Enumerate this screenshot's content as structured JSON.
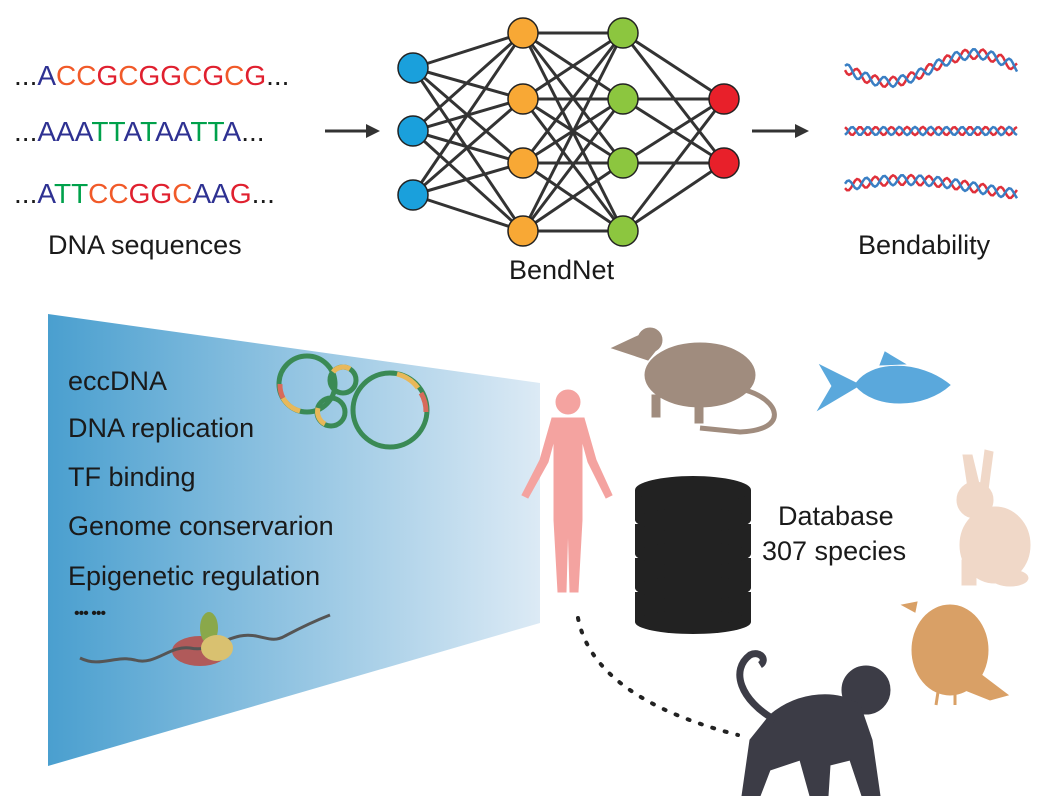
{
  "sequences": [
    "...ACCGCGGCGCG...",
    "...AAATTATAATTA...",
    "...ATTCCGGCAAG..."
  ],
  "base_colors": {
    "A": "#2e3192",
    "C": "#f15a29",
    "G": "#e0202f",
    "T": "#00a14b",
    ".": "#1a1a1a"
  },
  "labels": {
    "dna_sequences": "DNA sequences",
    "bendnet": "BendNet",
    "bendability": "Bendability",
    "database": "Database",
    "species": "307 species"
  },
  "applications": [
    "eccDNA",
    "DNA replication",
    "TF binding",
    "Genome conservarion",
    "Epigenetic regulation",
    "••• •••"
  ],
  "colors": {
    "input_node": "#1aa0dc",
    "hidden1_node": "#f8a835",
    "hidden2_node": "#8cc63f",
    "output_node": "#e8202a",
    "funnel_start": "#4a9fcf",
    "funnel_end": "#dceaf5",
    "human": "#f4a3a0",
    "mouse": "#a08c7e",
    "fish": "#5aa8dc",
    "rabbit": "#f0d8c8",
    "bird": "#d9a066",
    "monkey": "#3c3c46",
    "database": "#222222"
  }
}
